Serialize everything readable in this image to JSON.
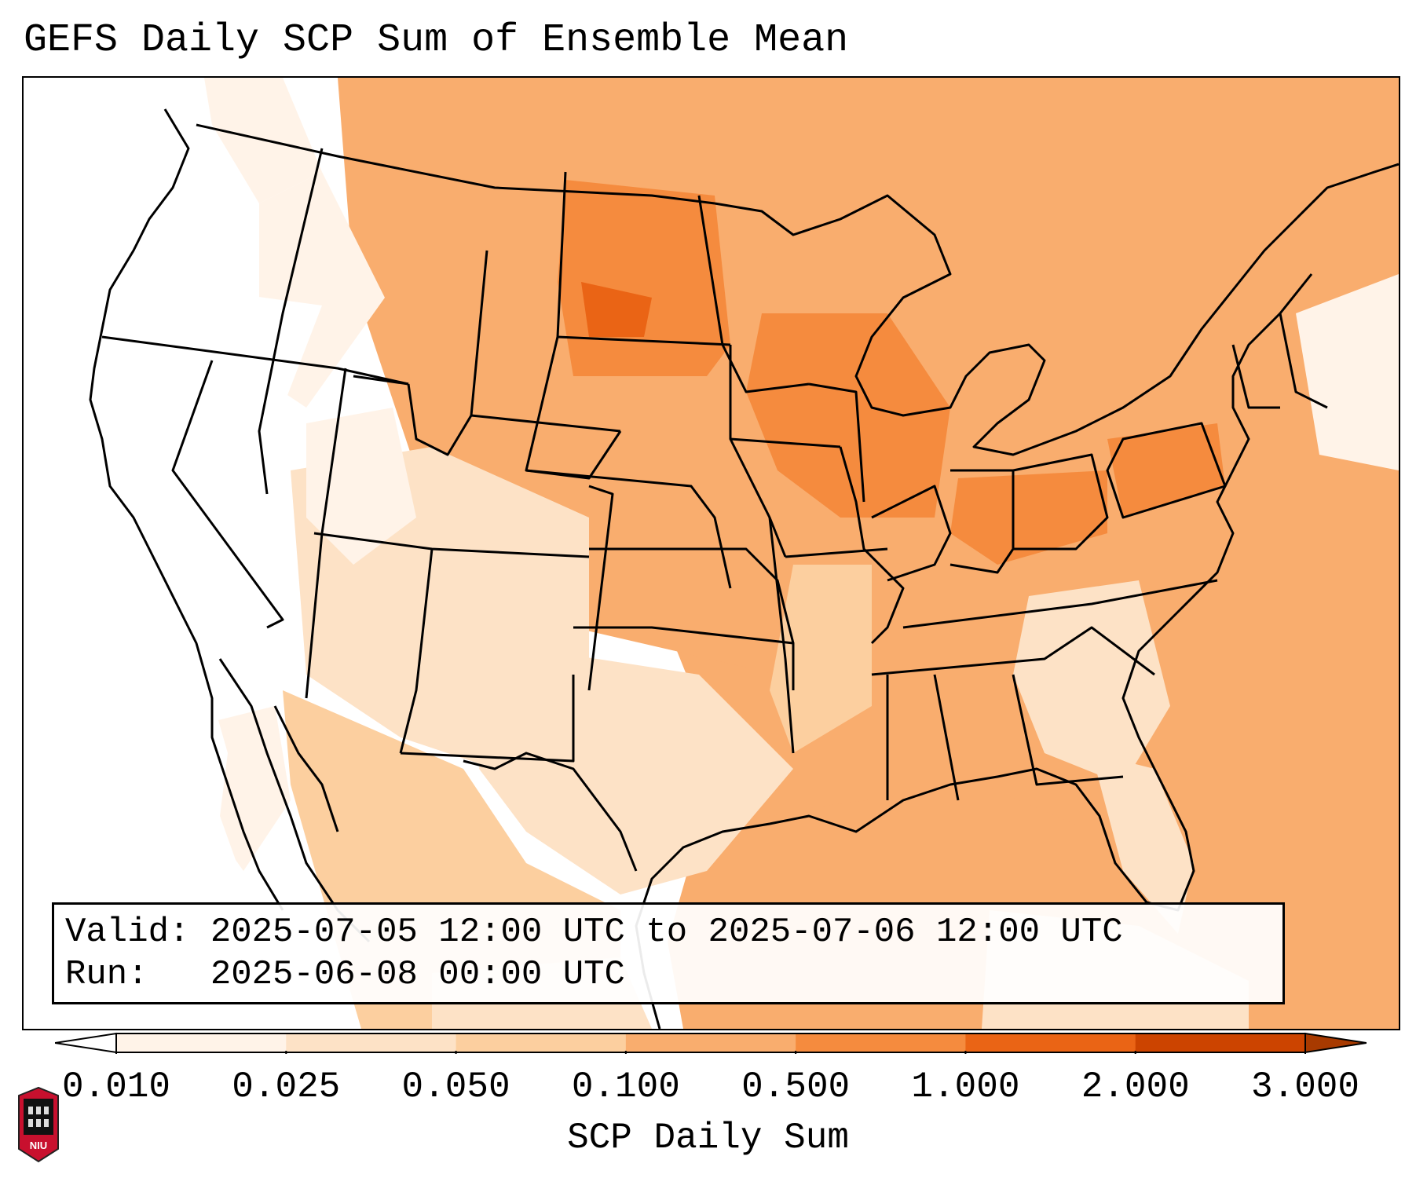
{
  "title": "GEFS Daily SCP Sum of Ensemble Mean",
  "info": {
    "valid_label": "Valid:",
    "valid_value": "2025-07-05 12:00 UTC to 2025-07-06 12:00 UTC",
    "run_label": "Run:",
    "run_value": "2025-06-08 00:00 UTC"
  },
  "colorbar": {
    "label": "SCP Daily Sum",
    "ticks": [
      "0.010",
      "0.025",
      "0.050",
      "0.100",
      "0.500",
      "1.000",
      "2.000",
      "3.000"
    ],
    "colors": [
      "#fff3e8",
      "#fde2c6",
      "#fccf9f",
      "#f9ad6e",
      "#f58b3e",
      "#ea6415",
      "#cc4400",
      "#a83a00"
    ]
  },
  "logo": {
    "text": "NIU"
  },
  "chart_data": {
    "type": "heatmap",
    "title": "GEFS Daily SCP Sum of Ensemble Mean",
    "colorbar_label": "SCP Daily Sum",
    "levels": [
      0.01,
      0.025,
      0.05,
      0.1,
      0.5,
      1.0,
      2.0,
      3.0
    ],
    "extend": "both",
    "valid": "2025-07-05 12:00 UTC to 2025-07-06 12:00 UTC",
    "run": "2025-06-08 00:00 UTC"
  }
}
